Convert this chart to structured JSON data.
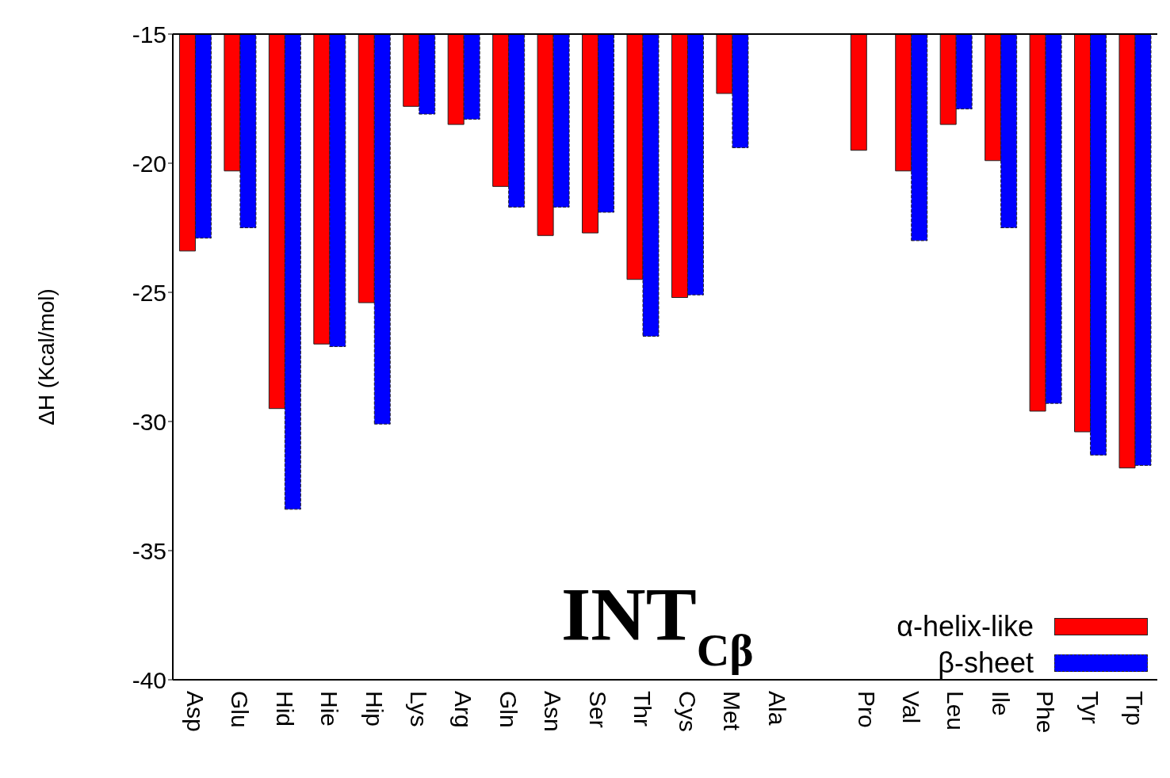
{
  "chart_data": {
    "type": "bar",
    "title": "INT$_{Cβ}$",
    "ylabel": "ΔH (Kcal/mol)",
    "categories": [
      "Asp",
      "Glu",
      "Hid",
      "Hie",
      "Hip",
      "Lys",
      "Arg",
      "Gln",
      "Asn",
      "Ser",
      "Thr",
      "Cys",
      "Met",
      "Ala",
      null,
      "Pro",
      "Val",
      "Leu",
      "Ile",
      "Phe",
      "Tyr",
      "Trp"
    ],
    "series": [
      {
        "name": "α-helix-like",
        "color": "#ff0000",
        "values": [
          -23.4,
          -20.3,
          -29.5,
          -27.0,
          -25.4,
          -17.8,
          -18.5,
          -20.9,
          -22.8,
          -22.7,
          -24.5,
          -25.2,
          -17.3,
          null,
          null,
          -19.5,
          -20.3,
          -18.5,
          -19.9,
          -29.6,
          -30.4,
          -31.8
        ]
      },
      {
        "name": "β-sheet",
        "color": "#0000ff",
        "values": [
          -22.9,
          -22.5,
          -33.4,
          -27.1,
          -30.1,
          -18.1,
          -18.3,
          -21.7,
          -21.7,
          -21.9,
          -26.7,
          -25.1,
          -19.4,
          null,
          null,
          null,
          -23.0,
          -17.9,
          -22.5,
          -29.3,
          -31.3,
          -31.7
        ]
      }
    ],
    "ylim": [
      -40,
      -15
    ],
    "yticks": [
      -40,
      -35,
      -30,
      -25,
      -20,
      -15
    ],
    "legend": "bottom right"
  }
}
